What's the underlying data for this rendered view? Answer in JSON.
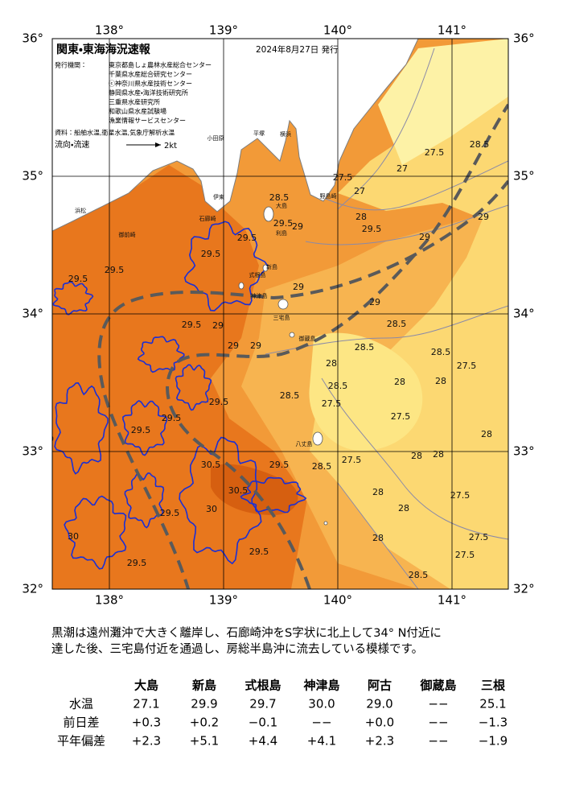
{
  "map": {
    "title": "関東・東海海況速報",
    "date": "2024年8月27日 発行",
    "issuers_label": "発行機関：",
    "issuers": [
      "東京都島しょ農林水産総合センター",
      "千葉県水産総合研究センター",
      "ⓒ神奈川県水産技術センター",
      "静岡県水産・海洋技術研究所",
      "三重県水産研究所",
      "和歌山県水産試験場",
      "漁業情報サービスセンター"
    ],
    "source": "資料：船舶水温,衛星水温,気象庁解析水温",
    "legend_label": "流向・流速",
    "legend_speed": "2kt",
    "lon_labels": [
      "138°",
      "139°",
      "140°",
      "141°"
    ],
    "lat_labels": [
      "36°",
      "35°",
      "34°",
      "33°",
      "32°"
    ],
    "place_names": [
      "平塚",
      "横浜",
      "小田原",
      "伊東",
      "野島崎",
      "大島",
      "利島",
      "新島",
      "式根島",
      "神津島",
      "三宅島",
      "御蔵島",
      "八丈島",
      "石廊崎",
      "御前崎",
      "浜松"
    ],
    "contour_labels": [
      "28.5",
      "29.5",
      "29",
      "28",
      "29.5",
      "29",
      "29",
      "28.5",
      "27.5",
      "27",
      "27.5",
      "27",
      "29",
      "29.5",
      "29.5",
      "29.5",
      "29.5",
      "29.5",
      "29",
      "29",
      "29",
      "28",
      "28.5",
      "28.5",
      "29",
      "28.5",
      "27.5",
      "28",
      "28",
      "28.5",
      "28.5",
      "27.5",
      "27.5",
      "27.5",
      "28",
      "28",
      "27.5",
      "28",
      "28",
      "28",
      "27.5",
      "27.5",
      "28",
      "28.5",
      "29.5",
      "30.5",
      "30.5",
      "29.5",
      "29.5",
      "29.5",
      "30",
      "30",
      "29.5",
      "29.5",
      "29.5",
      "30",
      "28.5"
    ]
  },
  "description": [
    "黒潮は遠州灘沖で大きく離岸し、石廊崎沖をS字状に北上して34° N付近に",
    "達した後、三宅島付近を通過し、房総半島沖に流去している模様です。"
  ],
  "table": {
    "columns": [
      "大島",
      "新島",
      "式根島",
      "神津島",
      "阿古",
      "御蔵島",
      "三根"
    ],
    "rows": [
      {
        "label": "水温",
        "cells": [
          "27.1",
          "29.9",
          "29.7",
          "30.0",
          "29.0",
          "−−",
          "25.1"
        ]
      },
      {
        "label": "前日差",
        "cells": [
          "+0.3",
          "+0.2",
          "−0.1",
          "−−",
          "+0.0",
          "−−",
          "−1.3"
        ]
      },
      {
        "label": "平年偏差",
        "cells": [
          "+2.3",
          "+5.1",
          "+4.4",
          "+4.1",
          "+2.3",
          "−−",
          "−1.9"
        ]
      }
    ]
  }
}
